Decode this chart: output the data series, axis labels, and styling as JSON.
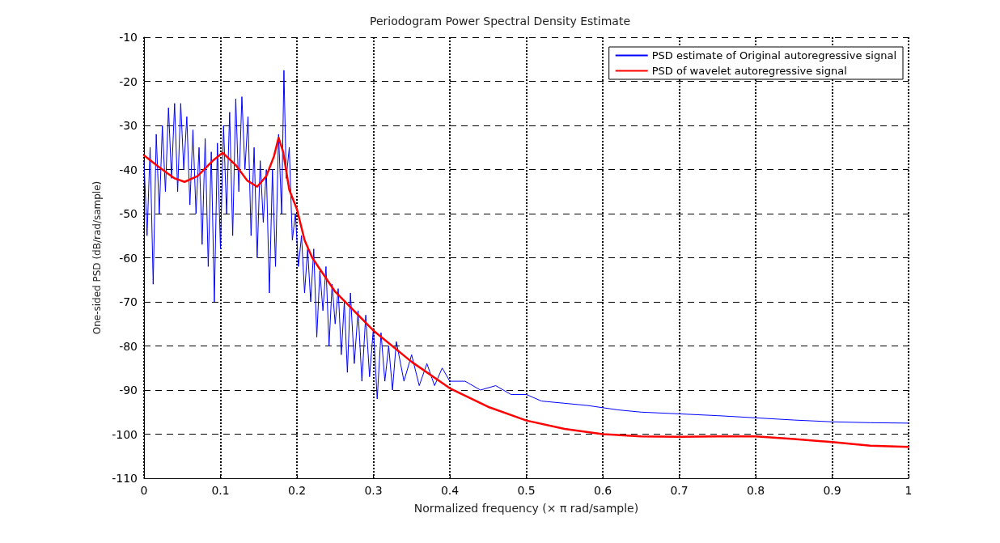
{
  "chart_data": {
    "type": "line",
    "title": "Periodogram Power Spectral Density Estimate",
    "xlabel": "Normalized frequency (× π rad/sample)",
    "ylabel": "One-sided PSD (dB/rad/sample)",
    "xlim": [
      0,
      1
    ],
    "xticks": [
      0,
      0.1,
      0.2,
      0.3,
      0.4,
      0.5,
      0.6,
      0.7,
      0.8,
      0.9,
      1
    ],
    "ylim": [
      -110,
      -10
    ],
    "yticks": [
      -110,
      -100,
      -90,
      -80,
      -70,
      -60,
      -50,
      -40,
      -30,
      -20,
      -10
    ],
    "grid": true,
    "legend": "top right",
    "marker": "none",
    "series": [
      {
        "name": "PSD estimate of Original autoregressive signal",
        "color": "#0000ff",
        "x": [
          0,
          0.004,
          0.008,
          0.012,
          0.016,
          0.02,
          0.024,
          0.028,
          0.032,
          0.036,
          0.04,
          0.044,
          0.048,
          0.052,
          0.056,
          0.06,
          0.064,
          0.068,
          0.072,
          0.076,
          0.08,
          0.084,
          0.088,
          0.092,
          0.096,
          0.1,
          0.104,
          0.108,
          0.112,
          0.116,
          0.12,
          0.124,
          0.128,
          0.132,
          0.136,
          0.14,
          0.144,
          0.148,
          0.152,
          0.156,
          0.16,
          0.164,
          0.168,
          0.172,
          0.176,
          0.18,
          0.183,
          0.186,
          0.19,
          0.194,
          0.198,
          0.202,
          0.206,
          0.21,
          0.214,
          0.218,
          0.222,
          0.226,
          0.23,
          0.234,
          0.238,
          0.242,
          0.246,
          0.25,
          0.254,
          0.258,
          0.262,
          0.266,
          0.27,
          0.275,
          0.28,
          0.285,
          0.29,
          0.295,
          0.3,
          0.305,
          0.31,
          0.315,
          0.32,
          0.325,
          0.33,
          0.34,
          0.35,
          0.36,
          0.37,
          0.38,
          0.39,
          0.4,
          0.42,
          0.44,
          0.46,
          0.48,
          0.5,
          0.52,
          0.55,
          0.58,
          0.6,
          0.62,
          0.65,
          0.7,
          0.75,
          0.8,
          0.85,
          0.9,
          0.95,
          1
        ],
        "values": [
          -38,
          -55,
          -35,
          -66,
          -32,
          -50,
          -30,
          -45,
          -26,
          -42,
          -25,
          -45,
          -25,
          -40,
          -28,
          -48,
          -31,
          -50,
          -35,
          -57,
          -33,
          -62,
          -36,
          -70,
          -34,
          -58,
          -30,
          -50,
          -27,
          -55,
          -24,
          -45,
          -23.5,
          -40,
          -28,
          -55,
          -35,
          -60,
          -38,
          -52,
          -40,
          -68,
          -40,
          -62,
          -32,
          -50,
          -17.5,
          -42,
          -35,
          -56,
          -50,
          -62,
          -55,
          -68,
          -58,
          -70,
          -58,
          -78,
          -63,
          -72,
          -62,
          -80,
          -66,
          -75,
          -67,
          -82,
          -70,
          -86,
          -68,
          -84,
          -72,
          -88,
          -73,
          -87,
          -76,
          -92,
          -77,
          -88,
          -80,
          -90,
          -79,
          -88,
          -82,
          -89,
          -84,
          -89,
          -85,
          -88,
          -88,
          -90,
          -89,
          -91,
          -91,
          -92.5,
          -93,
          -93.5,
          -94,
          -94.5,
          -95,
          -95.4,
          -95.8,
          -96.3,
          -96.8,
          -97.2,
          -97.4,
          -97.5
        ]
      },
      {
        "name": "PSD of wavelet autoregressive signal",
        "color": "#ff0000",
        "x": [
          0,
          0.02,
          0.04,
          0.053,
          0.07,
          0.09,
          0.103,
          0.12,
          0.135,
          0.148,
          0.16,
          0.17,
          0.176,
          0.182,
          0.19,
          0.2,
          0.21,
          0.22,
          0.25,
          0.3,
          0.35,
          0.4,
          0.45,
          0.5,
          0.55,
          0.6,
          0.65,
          0.7,
          0.75,
          0.8,
          0.85,
          0.9,
          0.95,
          1
        ],
        "values": [
          -36.8,
          -39.5,
          -42,
          -42.8,
          -41.5,
          -38,
          -36.2,
          -39,
          -42.5,
          -43.9,
          -41.5,
          -37,
          -32.8,
          -36,
          -44.6,
          -49,
          -56,
          -60,
          -67.7,
          -76.5,
          -83.6,
          -89.6,
          -93.8,
          -96.9,
          -98.8,
          -100,
          -100.5,
          -100.6,
          -100.5,
          -100.5,
          -101.1,
          -101.8,
          -102.6,
          -102.9
        ]
      }
    ]
  }
}
